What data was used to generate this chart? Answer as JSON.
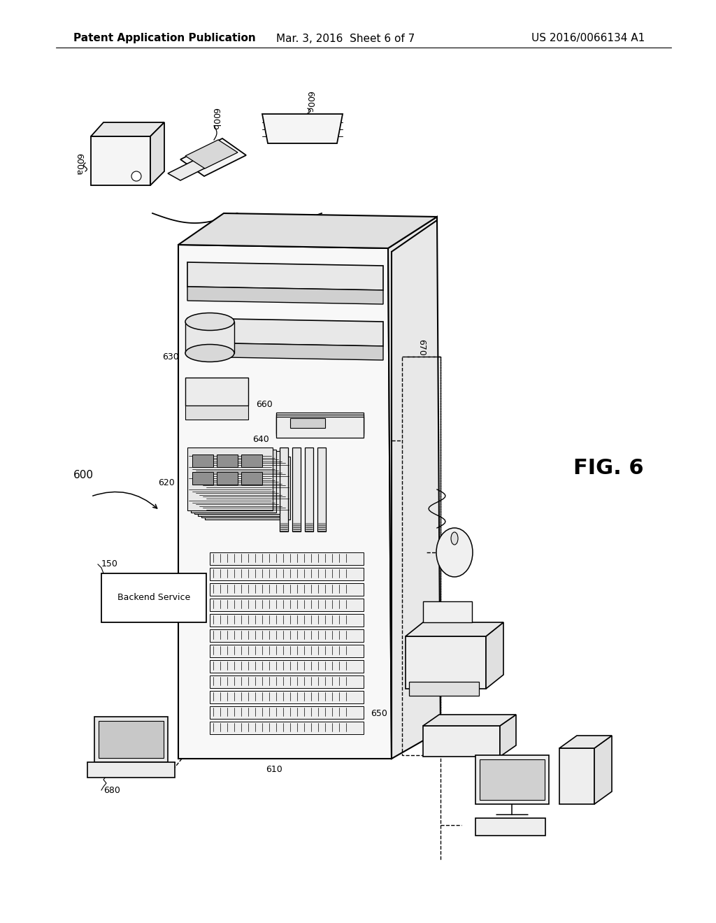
{
  "bg_color": "#ffffff",
  "header_left": "Patent Application Publication",
  "header_mid": "Mar. 3, 2016  Sheet 6 of 7",
  "header_right": "US 2016/0066134 A1",
  "fig_label": "FIG. 6",
  "line_color": "#000000",
  "gray_light": "#e8e8e8",
  "gray_mid": "#d0d0d0",
  "gray_dark": "#b0b0b0"
}
